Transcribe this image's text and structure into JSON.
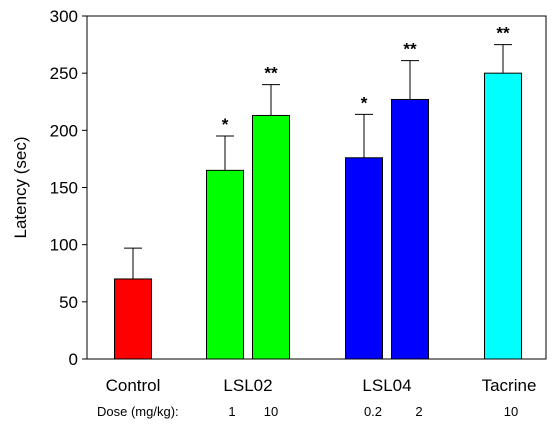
{
  "chart_data": {
    "type": "bar",
    "title": "",
    "xlabel": "",
    "ylabel": "Latency (sec)",
    "ylim": [
      0,
      300
    ],
    "yticks": [
      0,
      50,
      100,
      150,
      200,
      250,
      300
    ],
    "grid": false,
    "groups": [
      {
        "label": "Control"
      },
      {
        "label": "LSL02"
      },
      {
        "label": "LSL04"
      },
      {
        "label": "Tacrine"
      }
    ],
    "dose_label": "Dose (mg/kg):",
    "bars": [
      {
        "group": "Control",
        "dose": "",
        "value": 70,
        "error": 27,
        "significance": "",
        "color": "#ff0000"
      },
      {
        "group": "LSL02",
        "dose": "1",
        "value": 165,
        "error": 30,
        "significance": "*",
        "color": "#00ff00"
      },
      {
        "group": "LSL02",
        "dose": "10",
        "value": 213,
        "error": 27,
        "significance": "**",
        "color": "#00ff00"
      },
      {
        "group": "LSL04",
        "dose": "0.2",
        "value": 176,
        "error": 38,
        "significance": "*",
        "color": "#0000ff"
      },
      {
        "group": "LSL04",
        "dose": "2",
        "value": 227,
        "error": 34,
        "significance": "**",
        "color": "#0000ff"
      },
      {
        "group": "Tacrine",
        "dose": "10",
        "value": 250,
        "error": 25,
        "significance": "**",
        "color": "#00ffff"
      }
    ]
  }
}
